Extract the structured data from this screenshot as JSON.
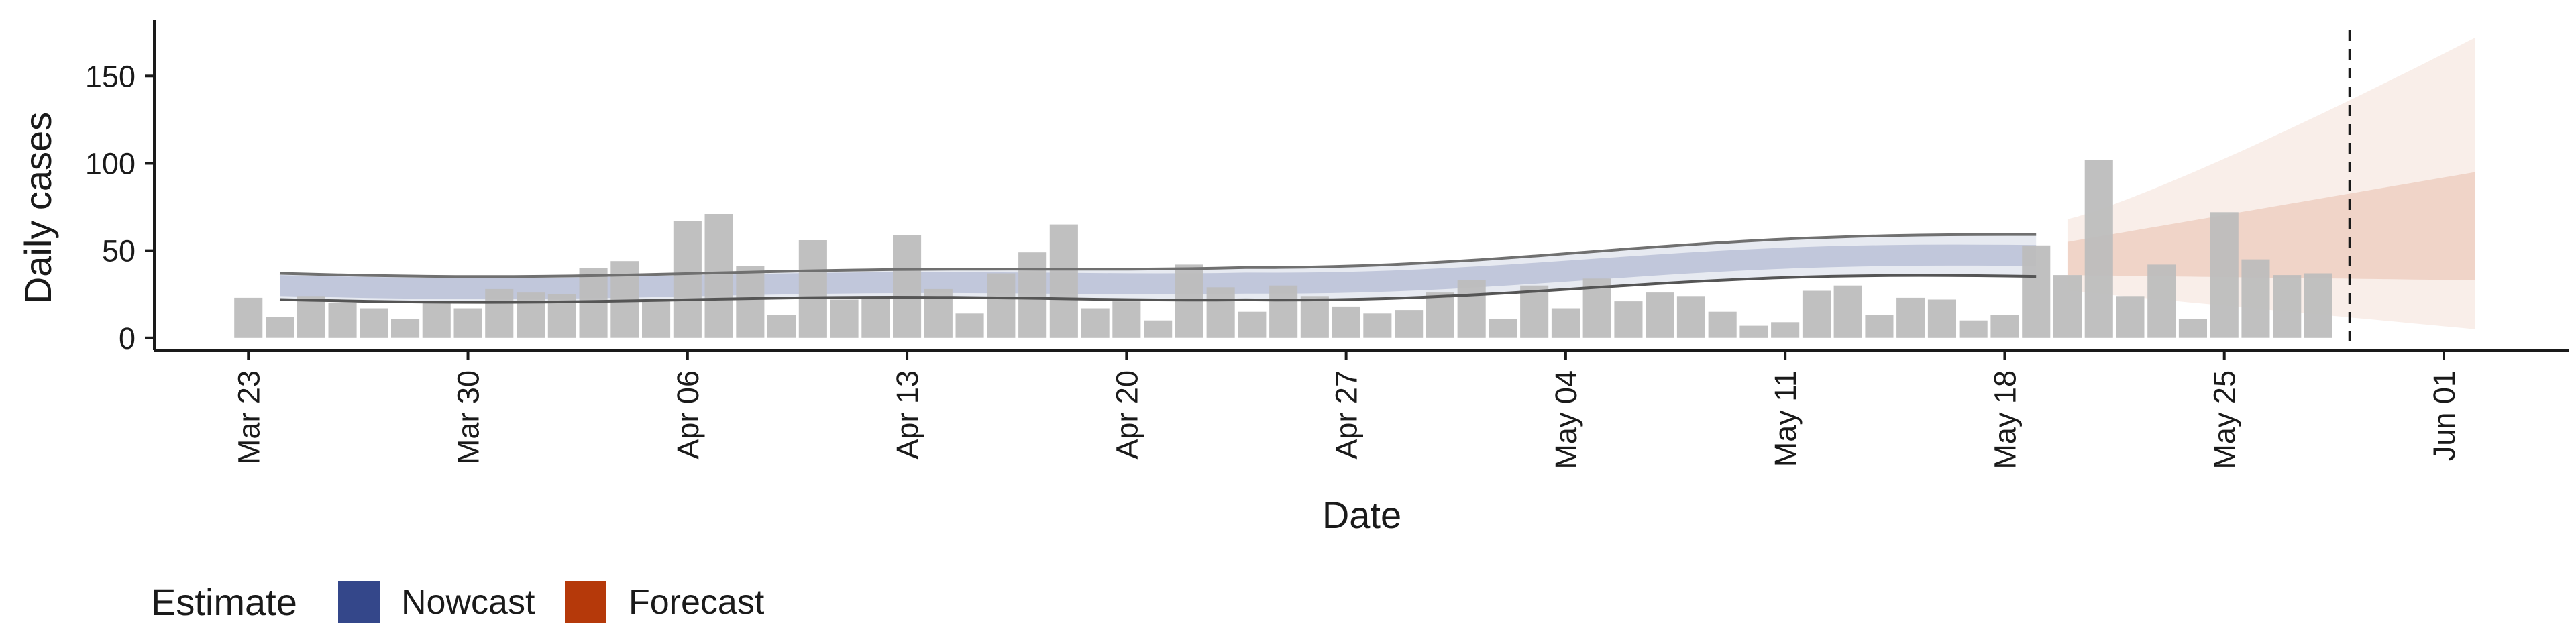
{
  "chart_data": {
    "type": "bar",
    "xlabel": "Date",
    "ylabel": "Daily cases",
    "ylim": [
      -7,
      182
    ],
    "yticks": [
      0,
      50,
      100,
      150
    ],
    "x_dates": [
      "2020-03-23",
      "2020-03-30",
      "2020-04-06",
      "2020-04-13",
      "2020-04-20",
      "2020-04-27",
      "2020-05-04",
      "2020-05-11",
      "2020-05-18",
      "2020-05-25",
      "2020-06-01"
    ],
    "x_tick_labels": [
      "Mar 23",
      "Mar 30",
      "Apr 06",
      "Apr 13",
      "Apr 20",
      "Apr 27",
      "May 04",
      "May 11",
      "May 18",
      "May 25",
      "Jun 01"
    ],
    "xlim": [
      "2020-03-20",
      "2020-06-05"
    ],
    "bar_start": "2020-03-23",
    "bars": [
      23,
      12,
      24,
      20,
      17,
      11,
      21,
      17,
      28,
      26,
      25,
      40,
      44,
      21,
      67,
      71,
      41,
      13,
      56,
      22,
      23,
      59,
      28,
      14,
      37,
      49,
      65,
      17,
      21,
      10,
      42,
      29,
      15,
      30,
      24,
      18,
      14,
      16,
      26,
      33,
      11,
      30,
      17,
      34,
      21,
      26,
      24,
      15,
      7,
      9,
      27,
      30,
      13,
      23,
      22,
      10,
      13,
      53,
      36,
      102,
      24,
      42,
      11,
      72,
      45,
      36,
      37
    ],
    "bar_color": "#bdbdbd",
    "estimate_line": "2020-05-29",
    "nowcast": {
      "start": "2020-03-24",
      "end": "2020-05-19",
      "upper90_start": 37,
      "upper90_end": 57,
      "lower90_start": 22,
      "lower90_end": 33,
      "median_start": 30,
      "median_end": 45,
      "color": "#3c4f8c"
    },
    "forecast": {
      "start": "2020-05-20",
      "end": "2020-06-02",
      "upper90": [
        68,
        172
      ],
      "lower90": [
        27,
        5
      ],
      "upper50": [
        55,
        95
      ],
      "lower50": [
        36,
        33
      ],
      "color": "#b9400f"
    },
    "legend": {
      "title": "Estimate",
      "items": [
        {
          "label": "Nowcast",
          "color": "#34478a"
        },
        {
          "label": "Forecast",
          "color": "#b5390a"
        }
      ],
      "position": "bottom-left"
    }
  }
}
